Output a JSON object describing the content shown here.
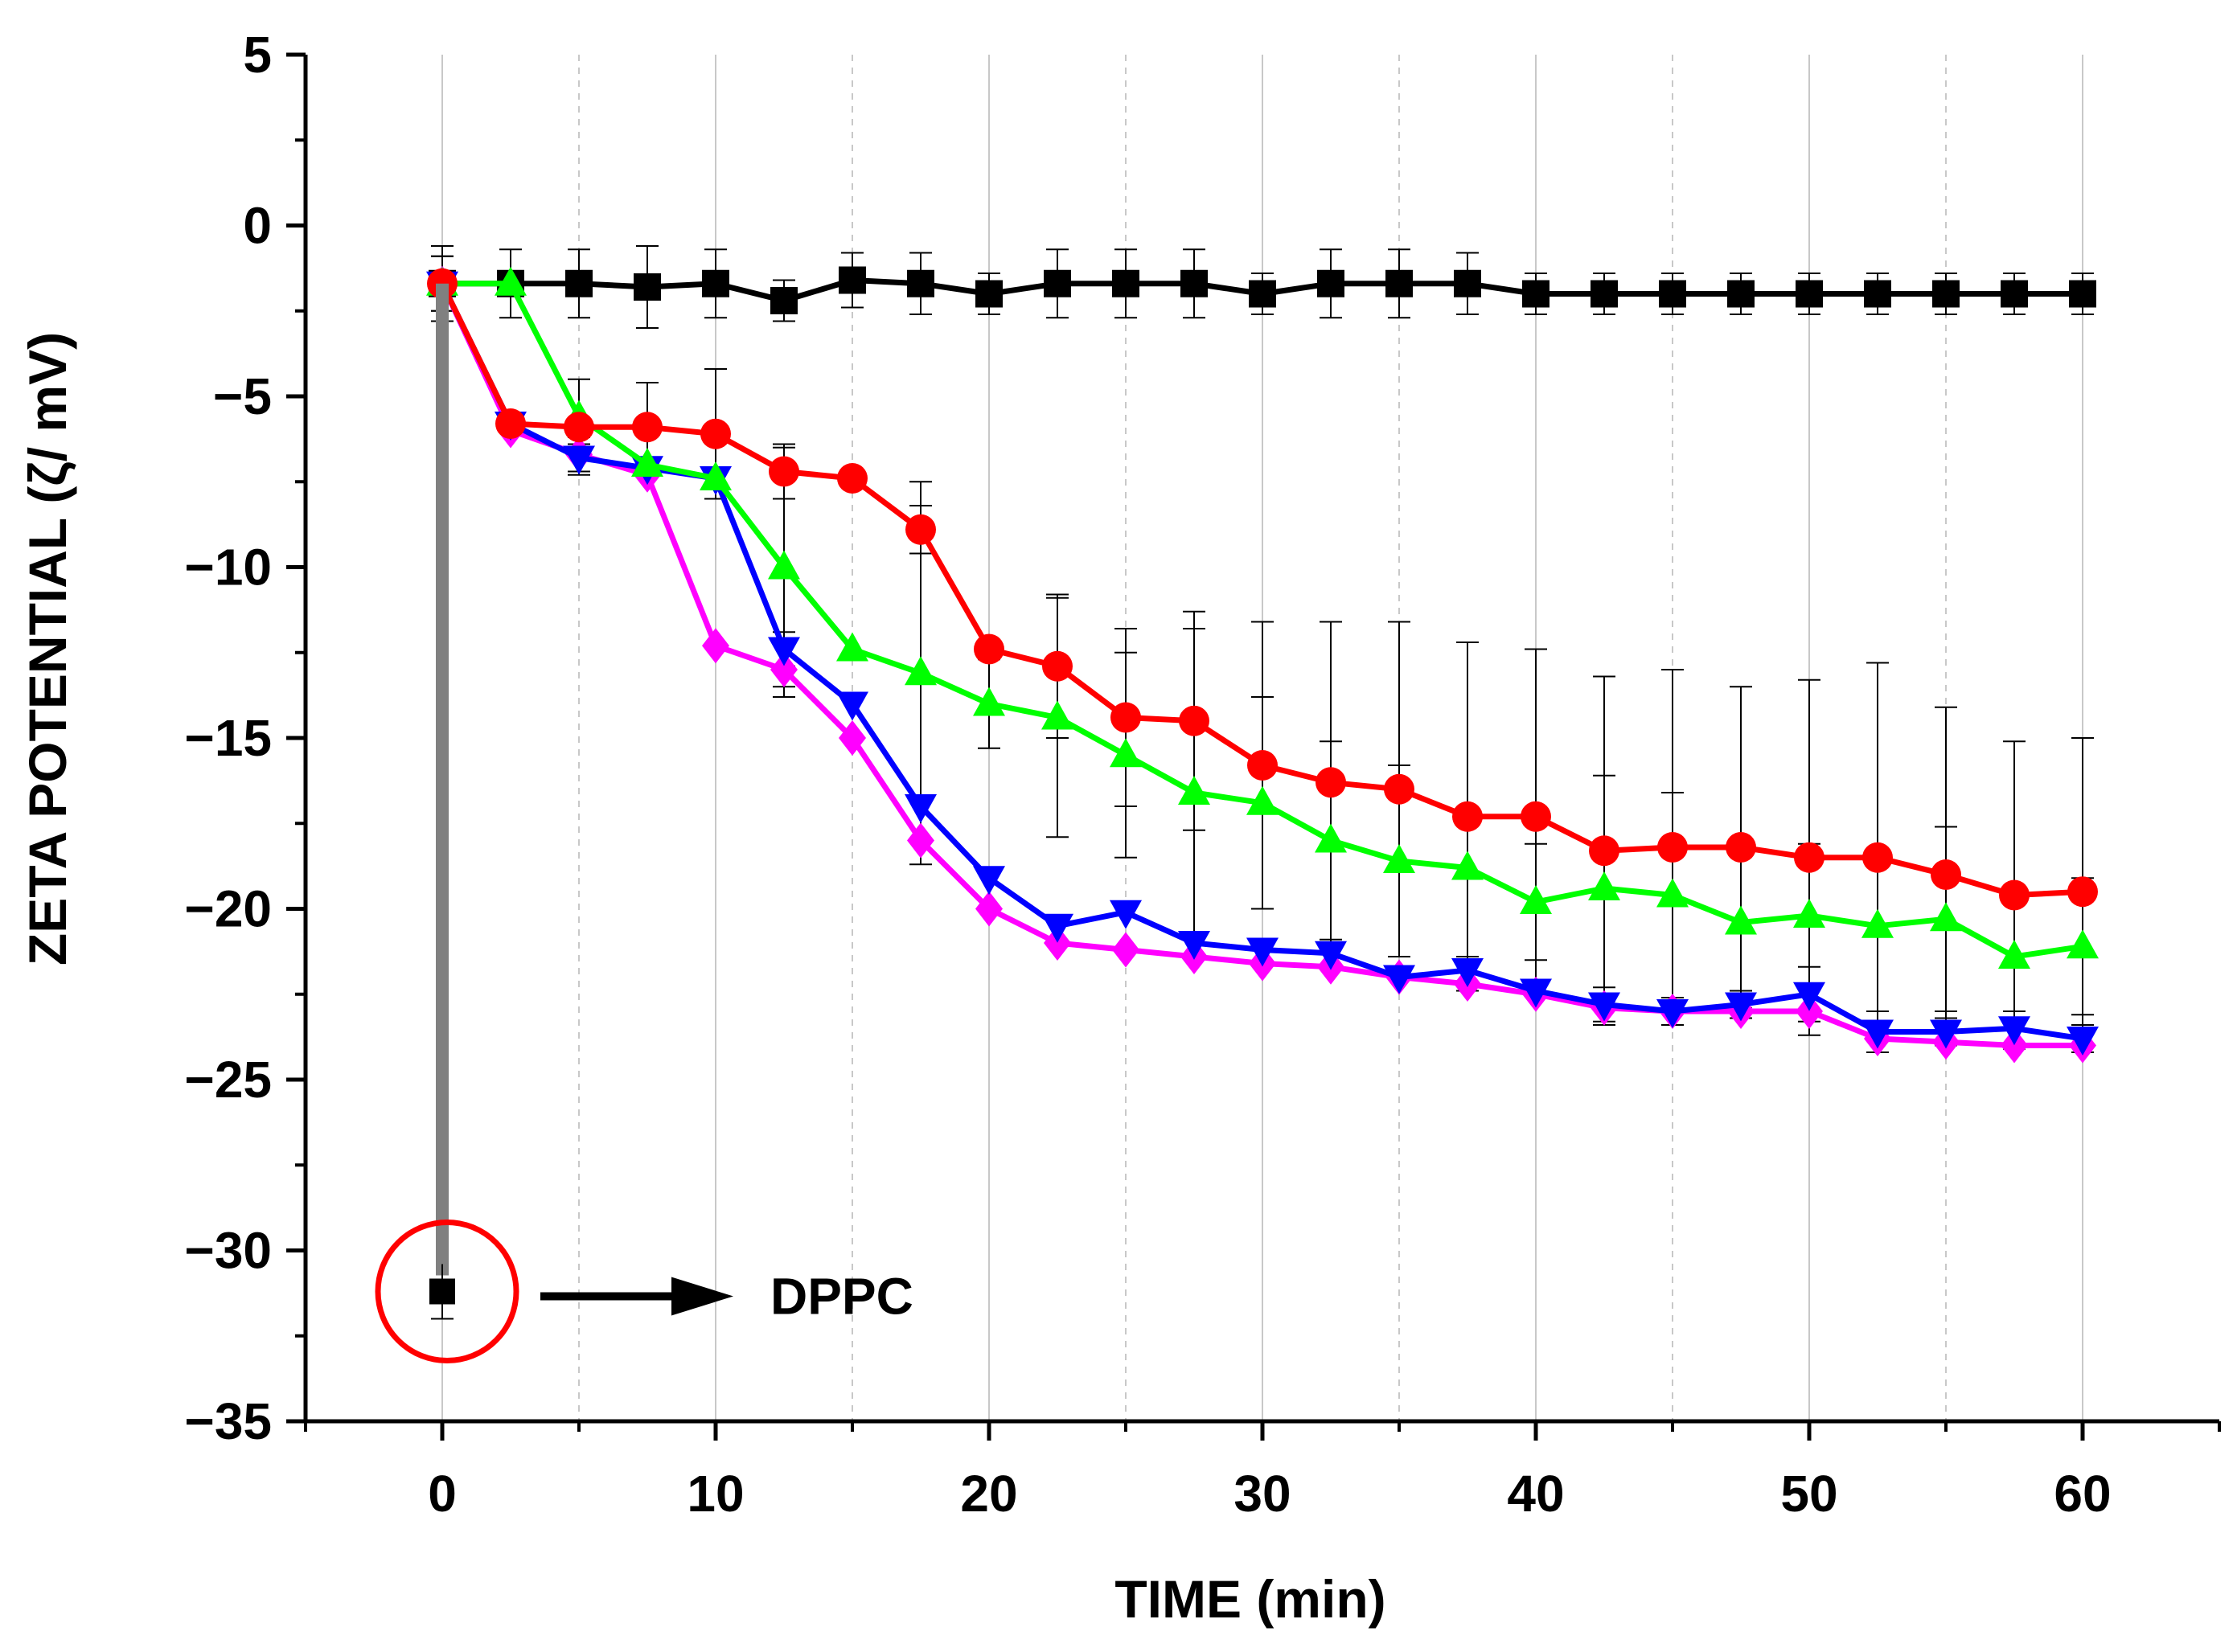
{
  "chart_data": {
    "type": "line",
    "title": "",
    "xlabel": "TIME (min)",
    "ylabel": "ZETA POTENTIAL (ζ/ mV)",
    "xlim": [
      -5,
      65
    ],
    "ylim": [
      -35,
      5
    ],
    "xticks": [
      0,
      10,
      20,
      30,
      40,
      50,
      60
    ],
    "yticks": [
      5,
      0,
      -5,
      -10,
      -15,
      -20,
      -25,
      -30,
      -35
    ],
    "ytick_labels": [
      "5",
      "0",
      "−5",
      "−10",
      "−15",
      "−20",
      "−25",
      "−30",
      "−35"
    ],
    "x": [
      0,
      2.5,
      5,
      7.5,
      10,
      12.5,
      15,
      17.5,
      20,
      22.5,
      25,
      27.5,
      30,
      32.5,
      35,
      37.5,
      40,
      42.5,
      45,
      47.5,
      50,
      52.5,
      55,
      57.5,
      60
    ],
    "grid": "vertical",
    "legend": "none",
    "series": [
      {
        "name": "black-square",
        "color": "#000000",
        "marker": "square",
        "values": [
          -1.7,
          -1.7,
          -1.7,
          -1.8,
          -1.7,
          -2.2,
          -1.6,
          -1.7,
          -2.0,
          -1.7,
          -1.7,
          -1.7,
          -2.0,
          -1.7,
          -1.7,
          -1.7,
          -2.0,
          -2.0,
          -2.0,
          -2.0,
          -2.0,
          -2.0,
          -2.0,
          -2.0,
          -2.0
        ],
        "errors": [
          0.8,
          1.0,
          1.0,
          1.2,
          1.0,
          0.6,
          0.8,
          0.9,
          0.6,
          1.0,
          1.0,
          1.0,
          0.6,
          1.0,
          1.0,
          0.9,
          0.6,
          0.6,
          0.6,
          0.6,
          0.6,
          0.6,
          0.6,
          0.6,
          0.6
        ]
      },
      {
        "name": "red-circle",
        "color": "#ff0000",
        "marker": "circle",
        "values": [
          -1.7,
          -5.8,
          -5.9,
          -5.9,
          -6.1,
          -7.2,
          -7.4,
          -8.9,
          -12.4,
          -12.9,
          -14.4,
          -14.5,
          -15.8,
          -16.3,
          -16.5,
          -17.3,
          -17.3,
          -18.3,
          -18.2,
          -18.2,
          -18.5,
          -18.5,
          -19.0,
          -19.6,
          -19.5
        ],
        "errors": [
          0.8,
          0,
          1.4,
          1.3,
          1.9,
          0.8,
          0,
          0.7,
          0,
          2.1,
          2.6,
          3.2,
          4.2,
          4.7,
          4.9,
          5.1,
          4.9,
          5.1,
          5.2,
          4.7,
          5.2,
          5.7,
          4.9,
          4.5,
          4.5
        ]
      },
      {
        "name": "green-triangle-up",
        "color": "#00ff00",
        "marker": "triangle-up",
        "values": [
          -1.7,
          -1.7,
          -5.6,
          -7.0,
          -7.4,
          -10.0,
          -12.4,
          -13.1,
          -14.0,
          -14.4,
          -15.5,
          -16.6,
          -16.9,
          -18.0,
          -18.6,
          -18.8,
          -19.8,
          -19.4,
          -19.6,
          -20.4,
          -20.2,
          -20.5,
          -20.3,
          -21.4,
          -21.1
        ],
        "errors": [
          0,
          0,
          0,
          0,
          0,
          3.5,
          0,
          5.6,
          1.3,
          3.5,
          3.0,
          4.8,
          3.1,
          2.9,
          2.8,
          0,
          1.7,
          3.3,
          3.0,
          0,
          2.1,
          0,
          2.7,
          0,
          2.0
        ]
      },
      {
        "name": "blue-triangle-down",
        "color": "#0000ff",
        "marker": "triangle-down",
        "values": [
          -1.7,
          -5.8,
          -6.8,
          -7.1,
          -7.4,
          -12.4,
          -14.0,
          -17.0,
          -19.1,
          -20.5,
          -20.1,
          -21.0,
          -21.2,
          -21.3,
          -22.0,
          -21.8,
          -22.4,
          -22.8,
          -23.0,
          -22.8,
          -22.5,
          -23.6,
          -23.6,
          -23.5,
          -23.8
        ],
        "errors": [
          0,
          0,
          0.4,
          0,
          0,
          0.5,
          0,
          0,
          0,
          0,
          0,
          0,
          0,
          0,
          0,
          0.4,
          0,
          0.5,
          0.4,
          0.4,
          0.8,
          0.6,
          0.4,
          0.5,
          0.4
        ]
      },
      {
        "name": "magenta-diamond",
        "color": "#ff00ff",
        "marker": "diamond",
        "values": [
          -1.7,
          -6.0,
          -6.7,
          -7.3,
          -12.3,
          -13.0,
          -15.0,
          -18.0,
          -20.0,
          -21.0,
          -21.2,
          -21.4,
          -21.6,
          -21.7,
          -22.0,
          -22.2,
          -22.5,
          -22.9,
          -23.0,
          -23.0,
          -23.0,
          -23.8,
          -23.9,
          -24.0,
          -24.0
        ],
        "errors": [
          1.1,
          0,
          0.5,
          0,
          0,
          0.8,
          0,
          0,
          0,
          0,
          0,
          0,
          0,
          0,
          0,
          0,
          0,
          0,
          0,
          0,
          0,
          0,
          0,
          0,
          0
        ]
      }
    ],
    "annotations": [
      {
        "label": "DPPC",
        "point": {
          "x": 0,
          "y": -31.2,
          "error": 0.8
        },
        "drop_line_from": -1.7,
        "drop_line_color": "#808080",
        "circle_color": "#ff0000"
      }
    ]
  }
}
